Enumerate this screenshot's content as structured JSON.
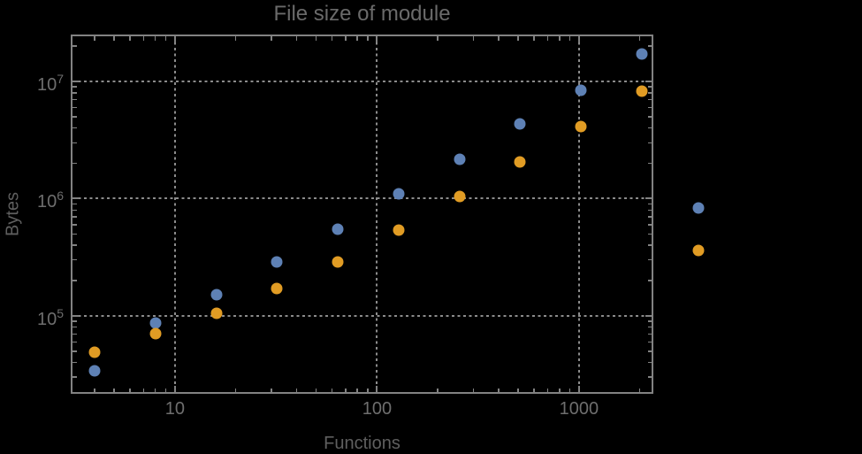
{
  "colors": {
    "background": "#000000",
    "frame": "#828282",
    "gridline": "#8b8b8b",
    "tick_label": "#6e6e6e",
    "axis_label": "#5f5f5f",
    "title": "#6a6a6a",
    "series_blue": "#5E81B5",
    "series_orange": "#E19C24"
  },
  "chart_data": {
    "type": "scatter",
    "title": "File size of module",
    "xlabel": "Functions",
    "ylabel": "Bytes",
    "x_scale": "log",
    "y_scale": "log",
    "grid": "dotted",
    "legend": "none",
    "xlim": [
      3.08,
      2310
    ],
    "ylim": [
      22000,
      24700000
    ],
    "x_ticks": [
      {
        "value": 10,
        "label": "10"
      },
      {
        "value": 100,
        "label": "100"
      },
      {
        "value": 1000,
        "label": "1000"
      }
    ],
    "y_ticks": [
      {
        "value": 100000,
        "base": "10",
        "exp": "5"
      },
      {
        "value": 1000000,
        "base": "10",
        "exp": "6"
      },
      {
        "value": 10000000,
        "base": "10",
        "exp": "7"
      }
    ],
    "series": [
      {
        "name": "blue-series",
        "color": "#5E81B5",
        "points": [
          [
            4,
            34000
          ],
          [
            8,
            87000
          ],
          [
            16,
            152000
          ],
          [
            32,
            290000
          ],
          [
            64,
            550000
          ],
          [
            128,
            1100000
          ],
          [
            256,
            2170000
          ],
          [
            512,
            4340000
          ],
          [
            1024,
            8400000
          ],
          [
            2048,
            17100000
          ],
          [
            3900,
            830000
          ]
        ]
      },
      {
        "name": "orange-series",
        "color": "#E19C24",
        "points": [
          [
            4,
            49000
          ],
          [
            8,
            70000
          ],
          [
            16,
            105000
          ],
          [
            32,
            171000
          ],
          [
            64,
            290000
          ],
          [
            128,
            540000
          ],
          [
            256,
            1040000
          ],
          [
            512,
            2060000
          ],
          [
            1024,
            4120000
          ],
          [
            2048,
            8300000
          ],
          [
            3900,
            360000
          ]
        ]
      }
    ]
  }
}
